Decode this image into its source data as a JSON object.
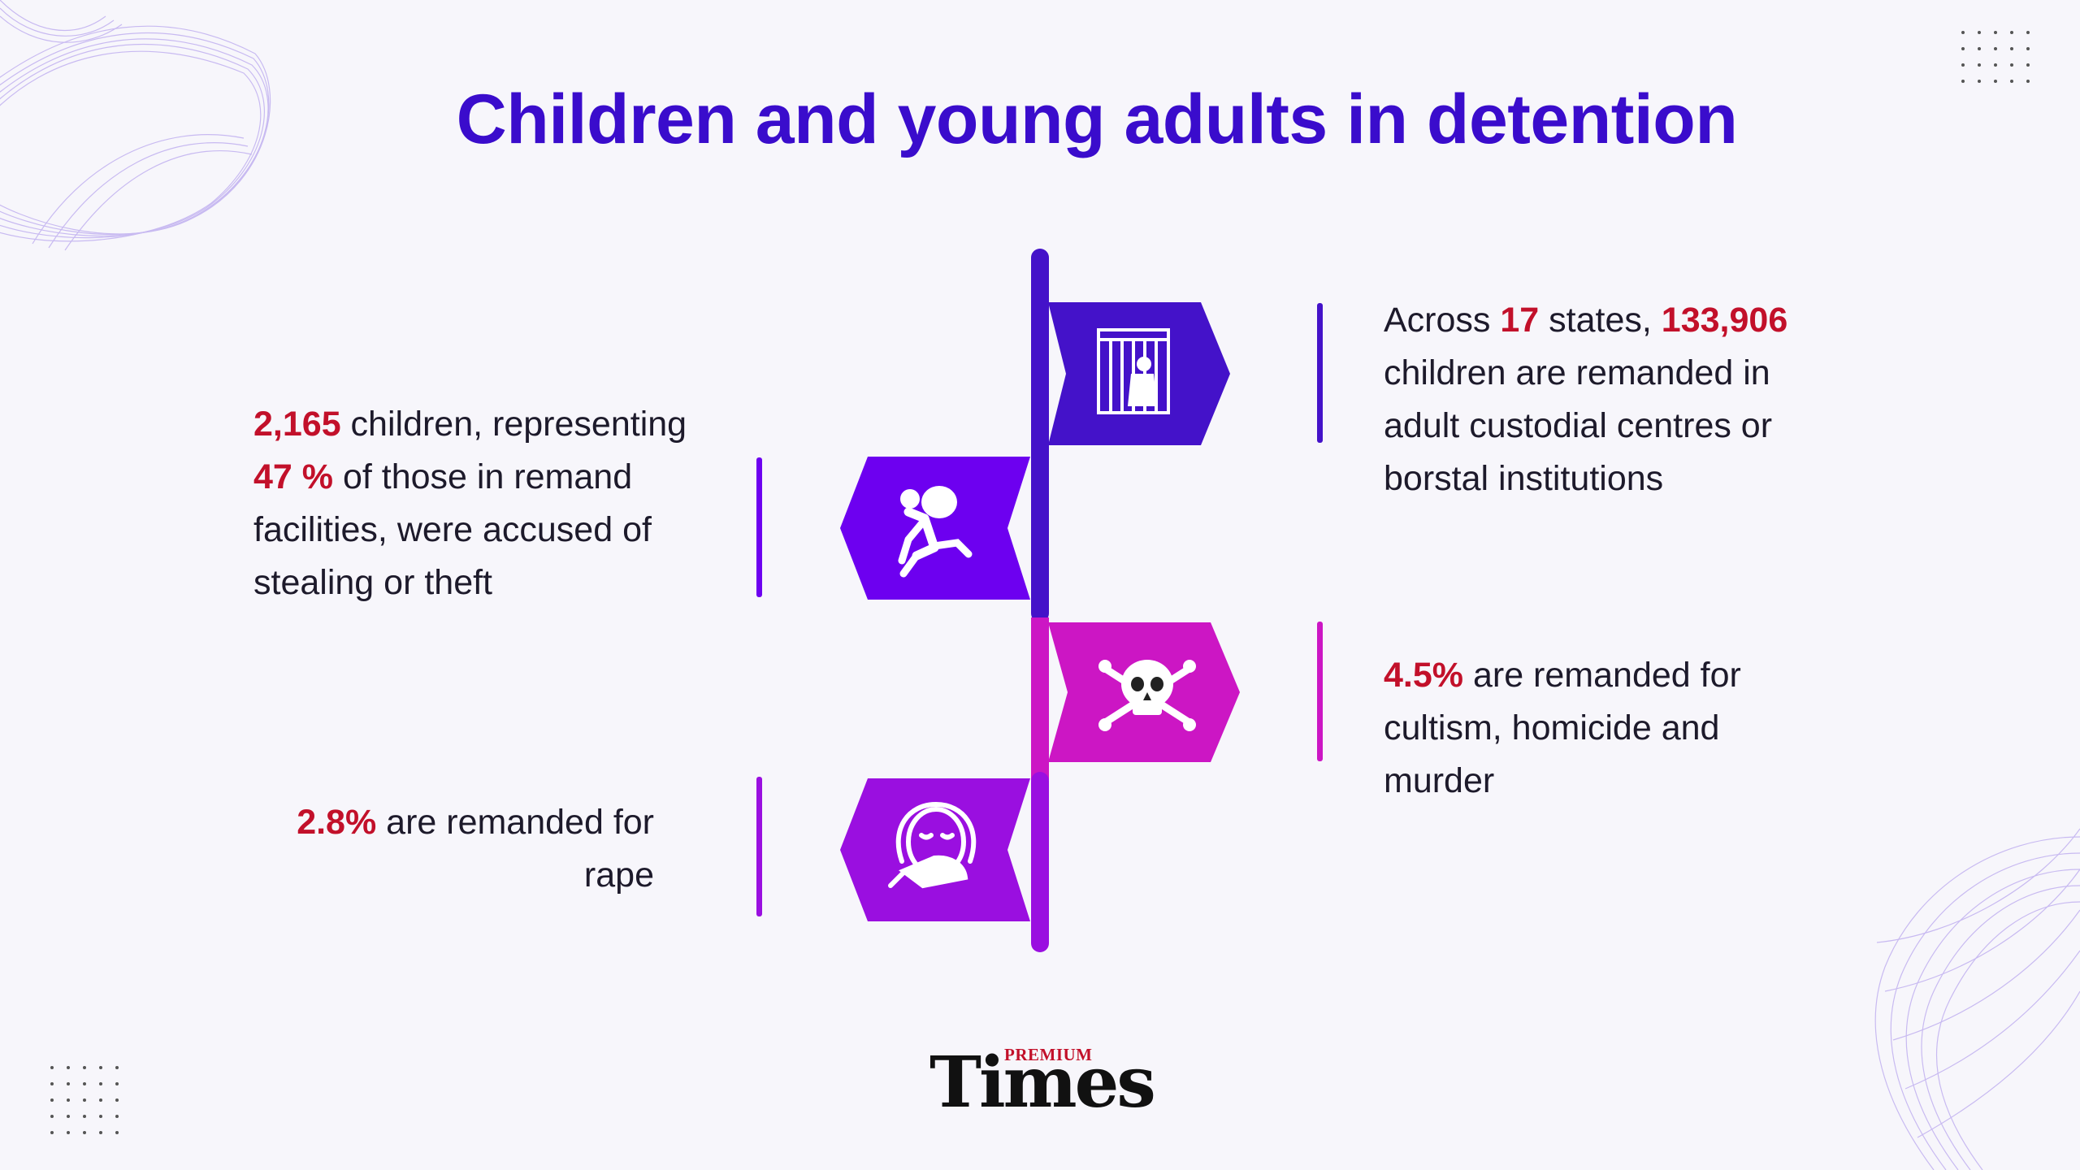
{
  "title": "Children and young adults in detention",
  "colors": {
    "title": "#3a0ccc",
    "highlight": "#c2102a",
    "indigo": "#4412c9",
    "violet": "#6d00f0",
    "magenta": "#cc16c4",
    "purple": "#9a0fe0"
  },
  "stats": {
    "left_top": {
      "icon": "thief-running-icon",
      "p1": "2,165",
      "p2": " children, representing ",
      "p3": "47 %",
      "p4": " of those in remand facilities, were accused of stealing or theft"
    },
    "left_bottom": {
      "icon": "covered-mouth-face-icon",
      "p1": "2.8%",
      "p2": " are remanded for rape"
    },
    "right_top": {
      "icon": "prison-bars-icon",
      "p1": "Across ",
      "p2": "17",
      "p3": " states, ",
      "p4": "133,906",
      "p5": " children are remanded in adult custodial centres or borstal institutions"
    },
    "right_bottom": {
      "icon": "skull-crossbones-icon",
      "p1": "4.5%",
      "p2": " are remanded for cultism, homicide and murder"
    }
  },
  "logo": {
    "premium": "PREMIUM",
    "times": "Times"
  }
}
